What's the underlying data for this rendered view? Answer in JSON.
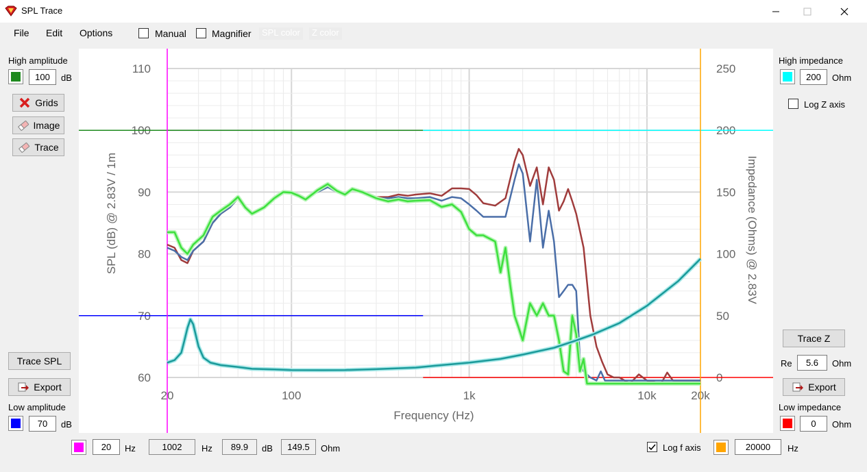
{
  "window": {
    "title": "SPL Trace"
  },
  "menu": {
    "file": "File",
    "edit": "Edit",
    "options": "Options"
  },
  "toolbar": {
    "manual_label": "Manual",
    "manual_checked": false,
    "magnifier_label": "Magnifier",
    "magnifier_checked": false,
    "spl_color_label": "SPL color",
    "z_color_label": "Z color"
  },
  "left_panel": {
    "high_amplitude_label": "High amplitude",
    "high_amplitude_value": "100",
    "high_amplitude_unit": "dB",
    "high_amplitude_color": "#1e8a1e",
    "grids_button": "Grids",
    "image_button": "Image",
    "trace_button": "Trace",
    "trace_spl_button": "Trace SPL",
    "export_button": "Export",
    "low_amplitude_label": "Low amplitude",
    "low_amplitude_value": "70",
    "low_amplitude_unit": "dB",
    "low_amplitude_color": "#0000ff"
  },
  "right_panel": {
    "high_impedance_label": "High impedance",
    "high_impedance_value": "200",
    "high_impedance_unit": "Ohm",
    "high_impedance_color": "#00ffff",
    "log_z_label": "Log Z axis",
    "log_z_checked": false,
    "trace_z_button": "Trace Z",
    "re_label": "Re",
    "re_value": "5.6",
    "re_unit": "Ohm",
    "export_button": "Export",
    "low_impedance_label": "Low impedance",
    "low_impedance_value": "0",
    "low_impedance_unit": "Ohm",
    "low_impedance_color": "#ff0000"
  },
  "bottom_bar": {
    "low_freq_color": "#ff00ff",
    "low_freq_value": "20",
    "low_freq_unit": "Hz",
    "cursor_freq_value": "1002",
    "cursor_freq_unit": "Hz",
    "cursor_spl_value": "89.9",
    "cursor_spl_unit": "dB",
    "cursor_z_value": "149.5",
    "cursor_z_unit": "Ohm",
    "log_f_label": "Log f axis",
    "log_f_checked": true,
    "high_freq_color": "#ffa500",
    "high_freq_value": "20000",
    "high_freq_unit": "Hz"
  },
  "chart_data": {
    "type": "line",
    "xlabel": "Frequency (Hz)",
    "ylabel": "SPL (dB) @ 2.83V / 1m",
    "y2label": "Impedance (Ohms) @ 2.83V",
    "xscale": "log",
    "xlim": [
      20,
      20000
    ],
    "ylim": [
      60,
      110
    ],
    "y2lim": [
      0,
      250
    ],
    "x_tick_labels": [
      "20",
      "100",
      "1k",
      "10k",
      "20k"
    ],
    "x_tick_values": [
      20,
      100,
      1000,
      10000,
      20000
    ],
    "y_ticks": [
      60,
      70,
      80,
      90,
      100,
      110
    ],
    "y2_ticks": [
      0,
      50,
      100,
      150,
      200,
      250
    ],
    "grid": true,
    "reference_lines": {
      "high_amplitude_db": 100,
      "low_amplitude_db": 70,
      "high_impedance_ohm": 200,
      "low_impedance_ohm": 0,
      "low_freq_hz": 20,
      "high_freq_hz": 20000
    },
    "series": [
      {
        "color": "#a03c3c",
        "axis": "spl",
        "points": [
          [
            20,
            81.5
          ],
          [
            22,
            81
          ],
          [
            24,
            79
          ],
          [
            26,
            78.5
          ],
          [
            28,
            80.5
          ],
          [
            32,
            82
          ],
          [
            36,
            85
          ],
          [
            40,
            86.5
          ],
          [
            45,
            87.5
          ],
          [
            50,
            89
          ],
          [
            55,
            87.5
          ],
          [
            60,
            86.5
          ],
          [
            70,
            87.5
          ],
          [
            80,
            89
          ],
          [
            90,
            89.8
          ],
          [
            100,
            89.9
          ],
          [
            110,
            89.6
          ],
          [
            120,
            89
          ],
          [
            140,
            90.2
          ],
          [
            160,
            91
          ],
          [
            180,
            90
          ],
          [
            200,
            89.5
          ],
          [
            220,
            90.5
          ],
          [
            250,
            90.2
          ],
          [
            300,
            89.2
          ],
          [
            350,
            89.2
          ],
          [
            400,
            89.6
          ],
          [
            450,
            89.4
          ],
          [
            500,
            89.6
          ],
          [
            600,
            89.8
          ],
          [
            700,
            89.4
          ],
          [
            800,
            90.6
          ],
          [
            900,
            90.6
          ],
          [
            1000,
            90.5
          ],
          [
            1100,
            89.5
          ],
          [
            1200,
            88.2
          ],
          [
            1400,
            87.8
          ],
          [
            1600,
            89
          ],
          [
            1800,
            95
          ],
          [
            1900,
            97
          ],
          [
            2000,
            96
          ],
          [
            2200,
            91
          ],
          [
            2400,
            94
          ],
          [
            2600,
            88
          ],
          [
            2800,
            94
          ],
          [
            3000,
            92
          ],
          [
            3200,
            87
          ],
          [
            3400,
            88.5
          ],
          [
            3600,
            90.5
          ],
          [
            3800,
            88.5
          ],
          [
            4000,
            86.5
          ],
          [
            4400,
            81
          ],
          [
            4800,
            70
          ],
          [
            5200,
            65
          ],
          [
            5600,
            62.5
          ],
          [
            6000,
            60.5
          ],
          [
            6500,
            60
          ],
          [
            7000,
            60
          ],
          [
            8000,
            59
          ],
          [
            9000,
            60.5
          ],
          [
            10000,
            59.5
          ],
          [
            12000,
            59
          ],
          [
            13000,
            60.8
          ],
          [
            14000,
            59.5
          ],
          [
            20000,
            59.5
          ]
        ]
      },
      {
        "color": "#4a6ea8",
        "axis": "spl",
        "points": [
          [
            20,
            81
          ],
          [
            22,
            80.5
          ],
          [
            24,
            79.5
          ],
          [
            26,
            79
          ],
          [
            28,
            80.5
          ],
          [
            32,
            82
          ],
          [
            36,
            85
          ],
          [
            40,
            86.5
          ],
          [
            45,
            87.5
          ],
          [
            50,
            89
          ],
          [
            55,
            87.5
          ],
          [
            60,
            86.5
          ],
          [
            70,
            87.5
          ],
          [
            80,
            89
          ],
          [
            90,
            89.8
          ],
          [
            100,
            89.9
          ],
          [
            110,
            89.6
          ],
          [
            120,
            89
          ],
          [
            140,
            90
          ],
          [
            160,
            90.8
          ],
          [
            180,
            90
          ],
          [
            200,
            89.5
          ],
          [
            220,
            90.3
          ],
          [
            250,
            90
          ],
          [
            300,
            89
          ],
          [
            350,
            89
          ],
          [
            400,
            89.2
          ],
          [
            450,
            89
          ],
          [
            500,
            89
          ],
          [
            600,
            89.2
          ],
          [
            700,
            88.6
          ],
          [
            800,
            89.2
          ],
          [
            900,
            89
          ],
          [
            1000,
            88
          ],
          [
            1100,
            87
          ],
          [
            1200,
            86
          ],
          [
            1400,
            86
          ],
          [
            1600,
            86
          ],
          [
            1800,
            92
          ],
          [
            1900,
            94.5
          ],
          [
            2000,
            93
          ],
          [
            2200,
            82
          ],
          [
            2400,
            92
          ],
          [
            2600,
            81
          ],
          [
            2800,
            87
          ],
          [
            3000,
            82
          ],
          [
            3200,
            73
          ],
          [
            3400,
            74
          ],
          [
            3600,
            75
          ],
          [
            3800,
            75
          ],
          [
            4000,
            74
          ],
          [
            4200,
            63
          ],
          [
            4400,
            61
          ],
          [
            4800,
            60
          ],
          [
            5200,
            59.5
          ],
          [
            5500,
            61
          ],
          [
            5800,
            59.5
          ],
          [
            20000,
            59.5
          ]
        ]
      },
      {
        "color": "#3ee03e",
        "axis": "spl",
        "points": [
          [
            20,
            83.5
          ],
          [
            22,
            83.5
          ],
          [
            24,
            81
          ],
          [
            26,
            80
          ],
          [
            28,
            81.5
          ],
          [
            32,
            83
          ],
          [
            36,
            86
          ],
          [
            40,
            87
          ],
          [
            45,
            88
          ],
          [
            50,
            89.2
          ],
          [
            55,
            87.5
          ],
          [
            60,
            86.5
          ],
          [
            70,
            87.5
          ],
          [
            80,
            89
          ],
          [
            90,
            90
          ],
          [
            100,
            89.9
          ],
          [
            110,
            89.4
          ],
          [
            120,
            88.8
          ],
          [
            140,
            90.3
          ],
          [
            160,
            91.3
          ],
          [
            180,
            90.2
          ],
          [
            200,
            89.6
          ],
          [
            220,
            90.5
          ],
          [
            250,
            90
          ],
          [
            300,
            89
          ],
          [
            350,
            88.5
          ],
          [
            400,
            88.8
          ],
          [
            450,
            88.5
          ],
          [
            500,
            88.6
          ],
          [
            600,
            88.7
          ],
          [
            700,
            87.6
          ],
          [
            800,
            88
          ],
          [
            900,
            86.8
          ],
          [
            1000,
            84
          ],
          [
            1100,
            83
          ],
          [
            1200,
            83
          ],
          [
            1400,
            82
          ],
          [
            1500,
            77
          ],
          [
            1600,
            81
          ],
          [
            1700,
            75
          ],
          [
            1800,
            70
          ],
          [
            1900,
            68
          ],
          [
            2000,
            66
          ],
          [
            2200,
            72
          ],
          [
            2400,
            70
          ],
          [
            2600,
            72
          ],
          [
            2800,
            70
          ],
          [
            3000,
            70
          ],
          [
            3200,
            66
          ],
          [
            3400,
            61
          ],
          [
            3600,
            60.5
          ],
          [
            3800,
            70
          ],
          [
            4000,
            67
          ],
          [
            4200,
            61
          ],
          [
            4400,
            63
          ],
          [
            4600,
            59
          ],
          [
            20000,
            59
          ]
        ]
      },
      {
        "color": "#1a9a9a",
        "axis": "impedance",
        "points": [
          [
            20,
            12
          ],
          [
            22,
            14
          ],
          [
            24,
            20
          ],
          [
            25,
            30
          ],
          [
            26,
            40
          ],
          [
            27,
            47
          ],
          [
            28,
            43
          ],
          [
            30,
            25
          ],
          [
            32,
            16
          ],
          [
            35,
            12
          ],
          [
            40,
            10
          ],
          [
            50,
            8.5
          ],
          [
            60,
            7
          ],
          [
            80,
            6.5
          ],
          [
            100,
            6
          ],
          [
            150,
            5.9
          ],
          [
            200,
            6
          ],
          [
            300,
            6.7
          ],
          [
            500,
            8
          ],
          [
            700,
            10
          ],
          [
            1000,
            12
          ],
          [
            1500,
            15
          ],
          [
            2000,
            18.5
          ],
          [
            3000,
            24
          ],
          [
            4000,
            30
          ],
          [
            5000,
            35
          ],
          [
            7000,
            44
          ],
          [
            10000,
            58
          ],
          [
            15000,
            78
          ],
          [
            20000,
            96
          ]
        ]
      }
    ]
  }
}
